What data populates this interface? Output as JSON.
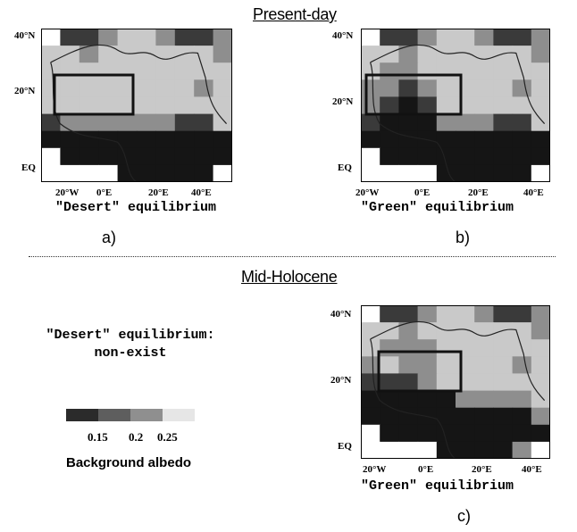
{
  "headings": {
    "present_day": "Present-day",
    "mid_holocene": "Mid-Holocene"
  },
  "axis_ticks": {
    "y": [
      "40°N",
      "20°N",
      "EQ"
    ],
    "x": [
      "20°W",
      "0°E",
      "20°E",
      "40°E"
    ]
  },
  "panels": {
    "a": {
      "caption": "\"Desert\" equilibrium",
      "label": "a)"
    },
    "b": {
      "caption": "\"Green\" equilibrium",
      "label": "b)"
    },
    "c": {
      "caption": "\"Green\" equilibrium",
      "label": "c)"
    }
  },
  "mid_holocene_desert": {
    "line1": "\"Desert\" equilibrium:",
    "line2": "non-exist"
  },
  "legend": {
    "title": "Background albedo",
    "ticks": [
      "0.15",
      "0.2",
      "0.25"
    ],
    "colors": [
      "#2b2b2b",
      "#5e5e5e",
      "#8f8f8f",
      "#c4c4c4",
      "#e9e9e9"
    ]
  },
  "map_colors": {
    "light": "#c9c9c9",
    "mid": "#8e8e8e",
    "dark": "#3a3a3a",
    "darkest": "#151515",
    "white": "#ffffff",
    "box": "#111111",
    "coast": "#222222"
  },
  "maps": {
    "a": [
      "WDDMLLMDDM",
      "LLMLLLLLLM",
      "LLLLLLLLLL",
      "LLLLLLLLML",
      "LLLLLLLLLL",
      "DMMMMMMDDL",
      "KKKKKKKKKK",
      "WKKKKKKKKK",
      "WWWWKKKKKW"
    ],
    "b": [
      "WDDMLLMDDM",
      "LLMLLLLLLM",
      "LMMLLLLLLL",
      "MMDMLLLLML",
      "MDKDLLLLLL",
      "DKKKMMMDDL",
      "KKKKKKKKKK",
      "WKKKKKKKKK",
      "WWWWKKKKKW"
    ],
    "c": [
      "WDDMLLMDDM",
      "LLMLLLLLLM",
      "LMMMLLLLLL",
      "MLMMLLLLML",
      "DDDMLLLLLL",
      "KKKKKMMMML",
      "KKKKKKKKKM",
      "WKKKKKKKKK",
      "WWWWKKKKMW"
    ]
  }
}
